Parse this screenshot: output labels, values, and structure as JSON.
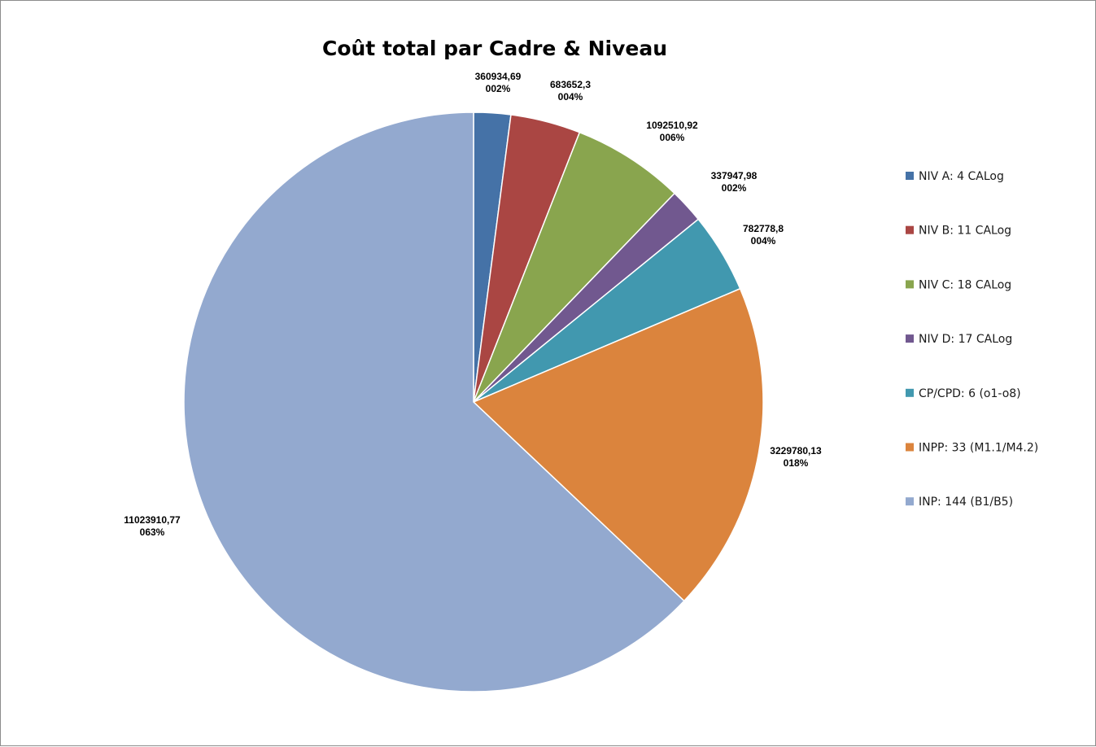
{
  "chart_data": {
    "type": "pie",
    "title": "Coût total par Cadre & Niveau",
    "legend_position": "right",
    "slices": [
      {
        "name": "NIV A: 4 CALog",
        "value": 360934.69,
        "value_label": "360934,69",
        "percent_label": "002%",
        "color": "#4572A7"
      },
      {
        "name": "NIV B: 11 CALog",
        "value": 683652.3,
        "value_label": "683652,3",
        "percent_label": "004%",
        "color": "#AA4643"
      },
      {
        "name": "NIV C: 18 CALog",
        "value": 1092510.92,
        "value_label": "1092510,92",
        "percent_label": "006%",
        "color": "#89A54E"
      },
      {
        "name": "NIV D: 17 CALog",
        "value": 337947.98,
        "value_label": "337947,98",
        "percent_label": "002%",
        "color": "#71588F"
      },
      {
        "name": "CP/CPD: 6 (o1-o8)",
        "value": 782778.8,
        "value_label": "782778,8",
        "percent_label": "004%",
        "color": "#4198AF"
      },
      {
        "name": "INPP: 33 (M1.1/M4.2)",
        "value": 3229780.13,
        "value_label": "3229780,13",
        "percent_label": "018%",
        "color": "#DB843D"
      },
      {
        "name": "INP: 144 (B1/B5)",
        "value": 11023910.77,
        "value_label": "11023910,77",
        "percent_label": "063%",
        "color": "#93A9CF"
      }
    ]
  }
}
